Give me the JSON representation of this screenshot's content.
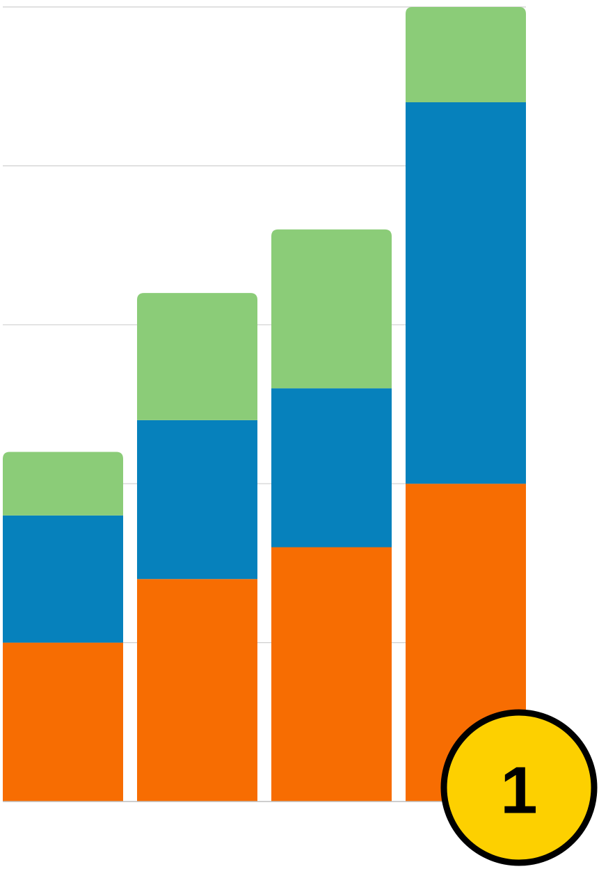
{
  "chart_data": {
    "type": "bar",
    "stacked": true,
    "title": "",
    "xlabel": "",
    "ylabel": "",
    "categories": [
      "",
      "",
      "",
      ""
    ],
    "ylim": [
      0,
      5
    ],
    "grid": true,
    "series": [
      {
        "values": [
          1.0,
          1.4,
          1.6,
          2.0
        ],
        "color": "#f76d02"
      },
      {
        "values": [
          0.8,
          1.0,
          1.0,
          2.4
        ],
        "color": "#0681bc"
      },
      {
        "values": [
          0.4,
          0.8,
          1.0,
          0.6
        ],
        "color": "#8bcc78"
      }
    ]
  },
  "badge": {
    "label": "1",
    "fill": "#fdd000",
    "stroke": "#000000"
  }
}
